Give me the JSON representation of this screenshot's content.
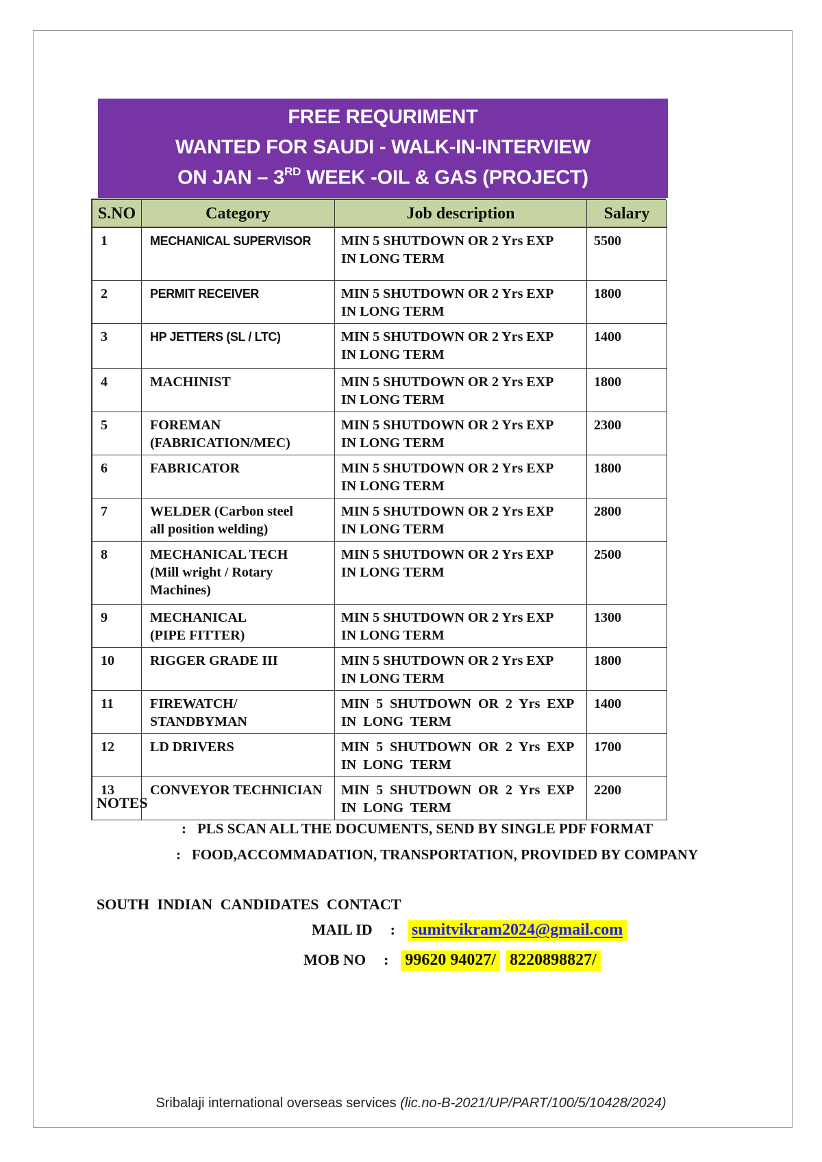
{
  "banner": {
    "bg_color": "#7634a6",
    "text_color": "#ffffff",
    "line1": "FREE REQURIMENT",
    "line2": "WANTED FOR SAUDI -  WALK-IN-INTERVIEW",
    "line3_prefix": "ON JAN – 3",
    "line3_sup": "RD",
    "line3_suffix": " WEEK  -OIL & GAS (PROJECT)"
  },
  "table": {
    "header_bg": "#c6d3a2",
    "header": {
      "sno": "S.NO",
      "category": "Category",
      "job": "Job description",
      "salary": "Salary"
    },
    "rows": [
      {
        "sno": "1",
        "category": "MECHANICAL SUPERVISOR",
        "job": "MIN 5 SHUTDOWN OR  2 Yrs EXP\nIN LONG TERM",
        "salary": "5500"
      },
      {
        "sno": "2",
        "category": "PERMIT RECEIVER",
        "job": "MIN 5 SHUTDOWN OR  2 Yrs EXP\nIN LONG TERM",
        "salary": "1800"
      },
      {
        "sno": "3",
        "category": "HP JETTERS  (SL / LTC)",
        "job": "MIN 5 SHUTDOWN OR  2 Yrs EXP\nIN LONG TERM",
        "salary": "1400"
      },
      {
        "sno": "4",
        "category": "MACHINIST",
        "job": "MIN 5 SHUTDOWN OR  2 Yrs EXP\nIN LONG TERM",
        "salary": "1800"
      },
      {
        "sno": "5",
        "category": "FOREMAN\n(FABRICATION/MEC)",
        "job": "MIN 5 SHUTDOWN OR  2 Yrs EXP\nIN LONG TERM",
        "salary": "2300"
      },
      {
        "sno": "6",
        "category": "FABRICATOR",
        "job": "MIN 5 SHUTDOWN OR  2 Yrs EXP\nIN LONG TERM",
        "salary": "1800"
      },
      {
        "sno": "7",
        "category": "WELDER (Carbon steel\nall position welding)",
        "job": "MIN 5 SHUTDOWN OR  2 Yrs EXP\nIN LONG TERM",
        "salary": "2800"
      },
      {
        "sno": "8",
        "category": "MECHANICAL TECH\n(Mill wright / Rotary\nMachines)",
        "job": "MIN 5 SHUTDOWN OR  2 Yrs EXP\nIN LONG TERM",
        "salary": "2500"
      },
      {
        "sno": "9",
        "category": "MECHANICAL\n(PIPE FITTER)",
        "job": "MIN 5 SHUTDOWN OR  2 Yrs EXP\nIN LONG TERM",
        "salary": "1300"
      },
      {
        "sno": "10",
        "category": "RIGGER GRADE III",
        "job": "MIN 5 SHUTDOWN OR  2 Yrs EXP\nIN LONG TERM",
        "salary": "1800"
      },
      {
        "sno": "11",
        "category": "FIREWATCH/\nSTANDBYMAN",
        "job": "MIN 5 SHUTDOWN OR  2 Yrs EXP\nIN LONG TERM",
        "salary": "1400"
      },
      {
        "sno": "12",
        "category": "LD DRIVERS",
        "job": "MIN 5 SHUTDOWN OR  2 Yrs EXP\nIN LONG TERM",
        "salary": "1700"
      },
      {
        "sno": "13",
        "category": "CONVEYOR TECHNICIAN",
        "job": "MIN 5 SHUTDOWN OR  2 Yrs EXP\nIN LONG TERM",
        "salary": "2200"
      }
    ]
  },
  "notes": {
    "heading": "NOTES",
    "colon": ":",
    "items": [
      "PLS SCAN ALL THE DOCUMENTS, SEND BY SINGLE PDF FORMAT",
      "FOOD,ACCOMMADATION, TRANSPORTATION, PROVIDED BY COMPANY"
    ]
  },
  "contact": {
    "heading": "SOUTH INDIAN CANDIDATES  CONTACT",
    "mail_label": "MAIL ID",
    "mob_label": "MOB NO",
    "colon": ":",
    "email": "sumitvikram2024@gmail.com",
    "mobile1": "99620 94027/",
    "mobile2": "8220898827/",
    "highlight_color": "#ffff00",
    "link_color": "#2222dd"
  },
  "footer": {
    "company": "Sribalaji international overseas services ",
    "license": "(lic.no-B-2021/UP/PART/100/5/10428/2024)"
  }
}
